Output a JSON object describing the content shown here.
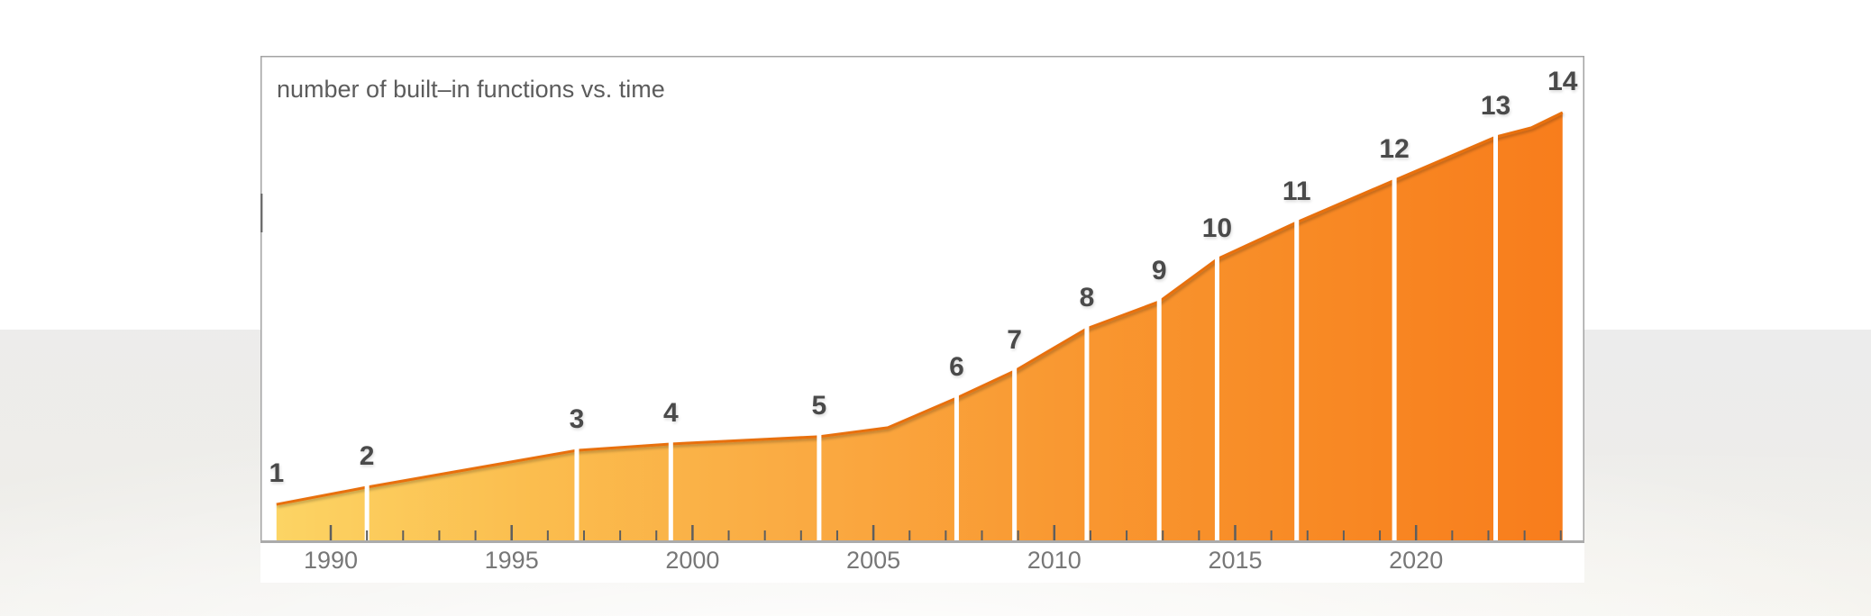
{
  "chart_data": {
    "type": "area",
    "title": "number of built–in functions vs. time",
    "xlabel": "",
    "ylabel": "",
    "x_axis": {
      "labeled_tick_years": [
        1990,
        1995,
        2000,
        2005,
        2010,
        2015,
        2020
      ],
      "minor_tick_every_years": 1,
      "tick_year_range": [
        1990,
        2024
      ],
      "visible_year_range": [
        1988.1,
        2024.7
      ]
    },
    "y_axis": {
      "labels_visible": false,
      "note": "no numeric y scale shown; values are heights relative to the final point",
      "relative_range": [
        0,
        1.13
      ]
    },
    "series": [
      {
        "name": "number of built-in functions",
        "points": [
          {
            "version_label": "1",
            "year": 1988.5,
            "value_relative": 0.086
          },
          {
            "version_label": "2",
            "year": 1991.0,
            "value_relative": 0.126
          },
          {
            "version_label": "3",
            "year": 1996.8,
            "value_relative": 0.212
          },
          {
            "version_label": "4",
            "year": 1999.4,
            "value_relative": 0.227
          },
          {
            "version_label": "5",
            "year": 2003.5,
            "value_relative": 0.244
          },
          {
            "version_label": null,
            "year": 2005.4,
            "value_relative": 0.265
          },
          {
            "version_label": "6",
            "year": 2007.3,
            "value_relative": 0.334
          },
          {
            "version_label": "7",
            "year": 2008.9,
            "value_relative": 0.397
          },
          {
            "version_label": "8",
            "year": 2010.9,
            "value_relative": 0.496
          },
          {
            "version_label": "9",
            "year": 2012.9,
            "value_relative": 0.559
          },
          {
            "version_label": "10",
            "year": 2014.5,
            "value_relative": 0.658
          },
          {
            "version_label": "11",
            "year": 2016.7,
            "value_relative": 0.744
          },
          {
            "version_label": "12",
            "year": 2019.4,
            "value_relative": 0.842
          },
          {
            "version_label": "13",
            "year": 2022.2,
            "value_relative": 0.943
          },
          {
            "version_label": null,
            "year": 2023.2,
            "value_relative": 0.965
          },
          {
            "version_label": "14",
            "year": 2024.05,
            "value_relative": 1.0
          }
        ]
      }
    ],
    "divider_versions": [
      "2",
      "3",
      "4",
      "5",
      "6",
      "7",
      "8",
      "9",
      "10",
      "11",
      "12",
      "13"
    ],
    "legend": null,
    "grid": false
  },
  "colors": {
    "area_fill_gradient": [
      "#FCD464",
      "#FBBD4E",
      "#FAAB43",
      "#F99932",
      "#F88A25",
      "#F87D1C"
    ],
    "curve_stroke": "#E8700E",
    "divider": "#FFFFFF",
    "tick": "#5E5E5E",
    "frame_border": "#A3A3A3",
    "axis_line": "#ABABAB",
    "border_dash": "#6E6E6E",
    "title_text": "#5C5C5C",
    "year_label_text": "#777777",
    "version_label_text": "#4A4A4A"
  }
}
